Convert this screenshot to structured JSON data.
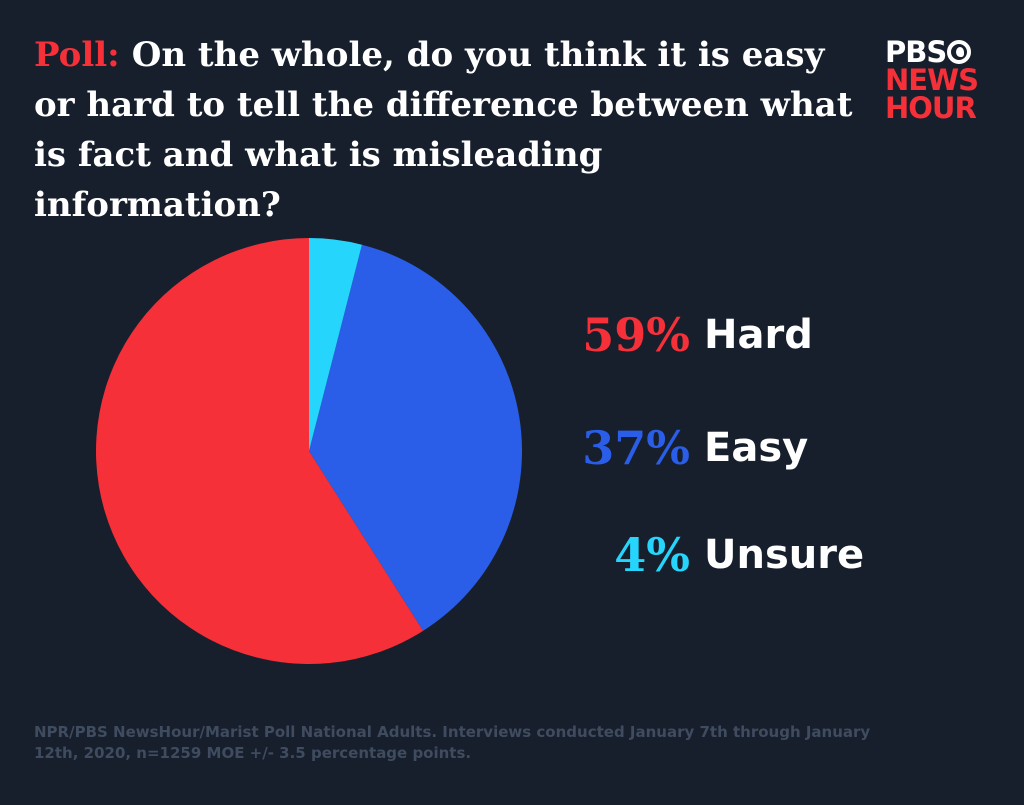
{
  "title": {
    "prefix": "Poll:",
    "text": "On the whole, do you think it is easy or hard to tell the difference between what is fact and what is misleading information?"
  },
  "logo": {
    "line1": "PBS",
    "line2": "NEWS",
    "line3": "HOUR"
  },
  "source": "NPR/PBS NewsHour/Marist Poll National Adults. Interviews conducted January 7th through January 12th, 2020, n=1259 MOE +/- 3.5 percentage points.",
  "colors": {
    "background": "#171f2c",
    "hard": "#f53039",
    "easy": "#2a5ee8",
    "unsure": "#26d5fb"
  },
  "chart_data": {
    "type": "pie",
    "title": "On the whole, do you think it is easy or hard to tell the difference between what is fact and what is misleading information?",
    "slices": [
      {
        "label": "Hard",
        "value": 59,
        "value_label": "59%",
        "color": "#f53039"
      },
      {
        "label": "Easy",
        "value": 37,
        "value_label": "37%",
        "color": "#2a5ee8"
      },
      {
        "label": "Unsure",
        "value": 4,
        "value_label": "4%",
        "color": "#26d5fb"
      }
    ],
    "legend_position": "right"
  }
}
